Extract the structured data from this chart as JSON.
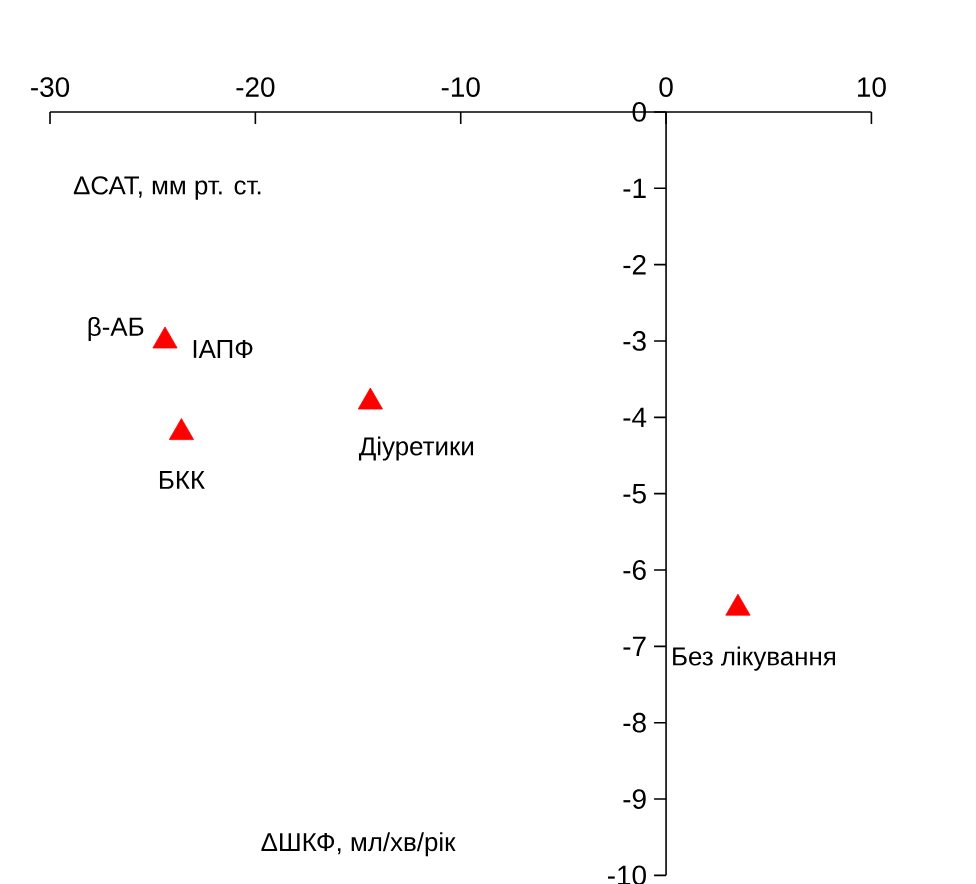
{
  "chart_data": {
    "type": "scatter",
    "xlabel": "ΔШКФ, мл/хв/рік",
    "ylabel": "ΔСАТ, мм рт. ст.",
    "x": [
      -24.4,
      -23.6,
      -14.4,
      3.5
    ],
    "series": [
      {
        "color": "#ff0000",
        "values": [
          -3.0,
          -4.2,
          -3.8,
          -6.5
        ]
      }
    ],
    "marker": "triangle",
    "grid": false,
    "xlim": [
      -30,
      10
    ],
    "ylim": [
      -10,
      0
    ],
    "xticks": [
      -30,
      -20,
      -10,
      0,
      10
    ],
    "yticks": [
      0,
      -1,
      -2,
      -3,
      -4,
      -5,
      -6,
      -7,
      -8,
      -9,
      -10
    ],
    "annotations": [
      {
        "text": "β-АБ",
        "x": -24.4,
        "y": -3.0
      },
      {
        "text": "ІАПФ",
        "x": -24.4,
        "y": -3.0
      },
      {
        "text": "БКК",
        "x": -23.6,
        "y": -4.2
      },
      {
        "text": "Діуретики",
        "x": -14.4,
        "y": -3.8
      },
      {
        "text": "Без лікування",
        "x": 3.5,
        "y": -6.5
      }
    ]
  }
}
